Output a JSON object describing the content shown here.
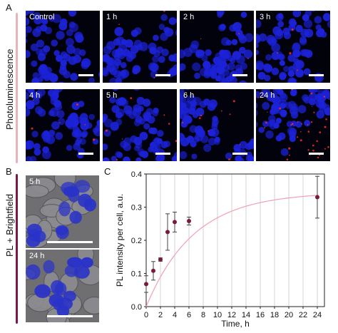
{
  "panels": {
    "a": {
      "letter": "A",
      "side_label": "Photoluminescence",
      "tiles": [
        {
          "label": "Control",
          "red": 0.0
        },
        {
          "label": "1 h",
          "red": 0.05
        },
        {
          "label": "2 h",
          "red": 0.05
        },
        {
          "label": "3 h",
          "red": 0.08
        },
        {
          "label": "4 h",
          "red": 0.1
        },
        {
          "label": "5 h",
          "red": 0.12
        },
        {
          "label": "6 h",
          "red": 0.15
        },
        {
          "label": "24 h",
          "red": 0.6
        }
      ]
    },
    "b": {
      "letter": "B",
      "side_label": "PL + Brightfield",
      "tiles": [
        {
          "label": "5 h"
        },
        {
          "label": "24 h"
        }
      ]
    },
    "c": {
      "letter": "C"
    }
  },
  "colors": {
    "panel_a_bar": "#e8b4b8",
    "panel_b_bar": "#7a1a4a",
    "marker": "#7a1a3a",
    "fit_line": "#f0a0b0",
    "nuclei": "#1c22d8"
  },
  "chart_data": {
    "type": "scatter",
    "ylabel": "PL intensity per cell, a.u.",
    "xlabel": "Time, h",
    "xlim": [
      0,
      25
    ],
    "ylim": [
      0,
      0.4
    ],
    "xticks": [
      0,
      2,
      4,
      6,
      8,
      10,
      12,
      14,
      16,
      18,
      20,
      22,
      24
    ],
    "yticks": [
      0,
      0.1,
      0.2,
      0.3,
      0.4
    ],
    "ytick_labels": [
      "0.0",
      "0.1",
      "0.2",
      "0.3",
      "0.4"
    ],
    "vertical_grid": true,
    "points": [
      {
        "x": 0,
        "y": 0.068,
        "err": 0.025
      },
      {
        "x": 1,
        "y": 0.108,
        "err": 0.028
      },
      {
        "x": 2,
        "y": 0.142,
        "err": 0.005
      },
      {
        "x": 3,
        "y": 0.225,
        "err": 0.055
      },
      {
        "x": 4,
        "y": 0.255,
        "err": 0.03
      },
      {
        "x": 6,
        "y": 0.258,
        "err": 0.012
      },
      {
        "x": 24,
        "y": 0.33,
        "err": 0.063
      }
    ],
    "fit_curve": {
      "type": "exponential",
      "a": 0.345,
      "k": 0.15
    }
  }
}
